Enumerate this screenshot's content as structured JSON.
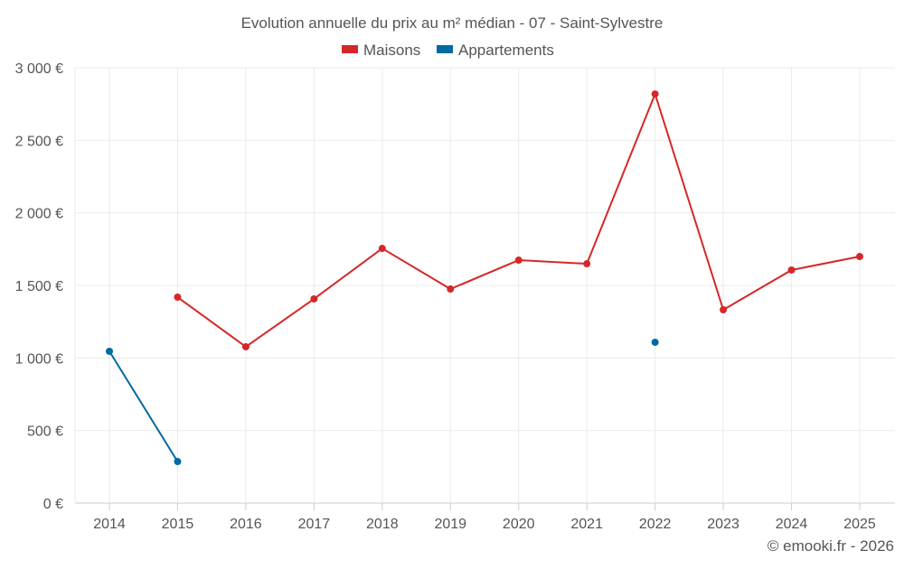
{
  "chart_data": {
    "type": "line",
    "title": "Evolution annuelle du prix au m² médian - 07 - Saint-Sylvestre",
    "xlabel": "",
    "ylabel": "",
    "categories": [
      "2014",
      "2015",
      "2016",
      "2017",
      "2018",
      "2019",
      "2020",
      "2021",
      "2022",
      "2023",
      "2024",
      "2025"
    ],
    "ylim": [
      0,
      3000
    ],
    "yticks": [
      0,
      500,
      1000,
      1500,
      2000,
      2500,
      3000
    ],
    "ytick_labels": [
      "0 €",
      "500 €",
      "1 000 €",
      "1 500 €",
      "2 000 €",
      "2 500 €",
      "3 000 €"
    ],
    "grid": true,
    "legend_position": "top-center",
    "series": [
      {
        "name": "Maisons",
        "color": "#d62728",
        "values": [
          null,
          1419,
          1077,
          1407,
          1755,
          1475,
          1674,
          1649,
          2819,
          1332,
          1606,
          1699
        ]
      },
      {
        "name": "Appartements",
        "color": "#00699f",
        "values": [
          1046,
          286,
          null,
          null,
          null,
          null,
          null,
          null,
          1108,
          null,
          null,
          null
        ]
      }
    ]
  },
  "credit": "© emooki.fr - 2026"
}
